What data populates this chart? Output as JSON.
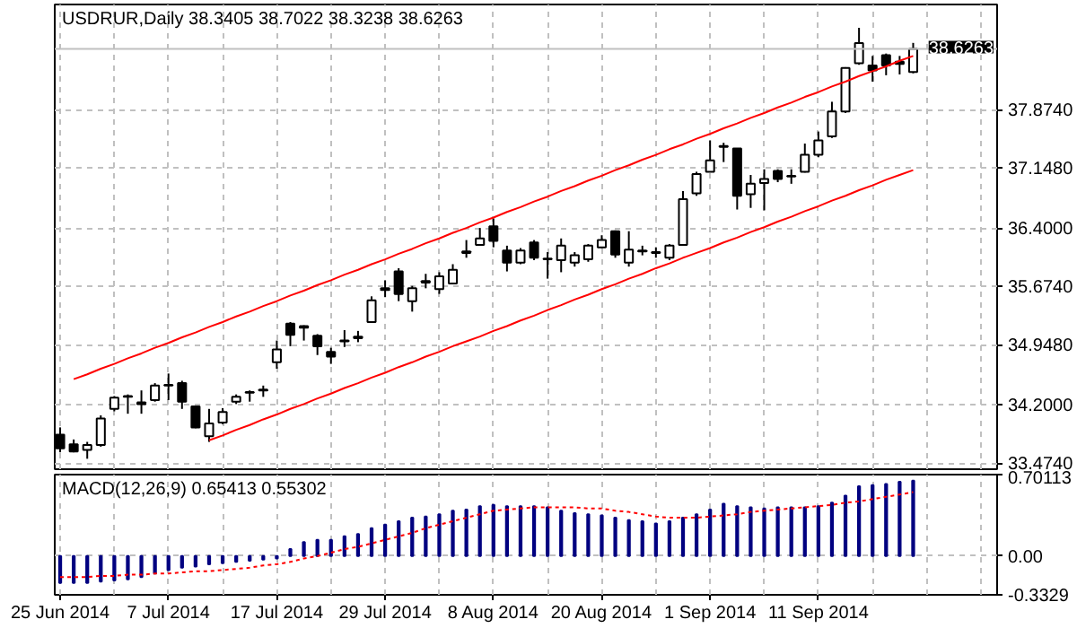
{
  "chart_data": [
    {
      "type": "candlestick",
      "title": "USDRUR,Daily 38.3405 38.7022 38.3238 38.6263",
      "ohlc": [
        [
          33.83,
          33.92,
          33.61,
          33.66
        ],
        [
          33.71,
          33.77,
          33.61,
          33.62
        ],
        [
          33.64,
          33.74,
          33.53,
          33.7
        ],
        [
          33.7,
          34.07,
          33.68,
          34.03
        ],
        [
          34.15,
          34.31,
          34.12,
          34.29
        ],
        [
          34.3,
          34.33,
          34.09,
          34.31
        ],
        [
          34.21,
          34.38,
          34.09,
          34.23
        ],
        [
          34.26,
          34.47,
          34.24,
          34.44
        ],
        [
          34.44,
          34.59,
          34.26,
          34.45
        ],
        [
          34.47,
          34.5,
          34.15,
          34.24
        ],
        [
          34.18,
          34.19,
          33.91,
          33.92
        ],
        [
          33.81,
          34.15,
          33.74,
          33.97
        ],
        [
          33.98,
          34.16,
          33.96,
          34.11
        ],
        [
          34.24,
          34.33,
          34.21,
          34.3
        ],
        [
          34.35,
          34.38,
          34.24,
          34.36
        ],
        [
          34.38,
          34.44,
          34.3,
          34.39
        ],
        [
          34.73,
          35.0,
          34.65,
          34.89
        ],
        [
          35.21,
          35.23,
          34.93,
          35.07
        ],
        [
          35.16,
          35.19,
          35.0,
          35.18
        ],
        [
          35.06,
          35.08,
          34.82,
          34.93
        ],
        [
          34.86,
          34.91,
          34.71,
          34.8
        ],
        [
          34.99,
          35.13,
          34.92,
          35.0
        ],
        [
          35.03,
          35.12,
          34.98,
          35.05
        ],
        [
          35.23,
          35.55,
          35.22,
          35.5
        ],
        [
          35.63,
          35.75,
          35.54,
          35.65
        ],
        [
          35.86,
          35.9,
          35.49,
          35.58
        ],
        [
          35.49,
          35.68,
          35.36,
          35.65
        ],
        [
          35.72,
          35.83,
          35.65,
          35.74
        ],
        [
          35.64,
          35.85,
          35.58,
          35.8
        ],
        [
          35.71,
          35.95,
          35.7,
          35.88
        ],
        [
          36.09,
          36.25,
          36.03,
          36.11
        ],
        [
          36.19,
          36.4,
          36.18,
          36.27
        ],
        [
          36.42,
          36.52,
          36.16,
          36.24
        ],
        [
          36.12,
          36.18,
          35.86,
          35.97
        ],
        [
          35.97,
          36.15,
          35.95,
          36.12
        ],
        [
          36.22,
          36.25,
          36.0,
          36.03
        ],
        [
          36.01,
          36.1,
          35.77,
          36.02
        ],
        [
          36.0,
          36.27,
          35.85,
          36.18
        ],
        [
          35.97,
          36.1,
          35.92,
          36.06
        ],
        [
          36.01,
          36.2,
          35.98,
          36.18
        ],
        [
          36.16,
          36.31,
          36.15,
          36.25
        ],
        [
          36.36,
          36.37,
          36.03,
          36.07
        ],
        [
          35.97,
          36.36,
          35.92,
          36.13
        ],
        [
          36.11,
          36.18,
          36.06,
          36.12
        ],
        [
          36.09,
          36.16,
          36.03,
          36.1
        ],
        [
          36.03,
          36.2,
          36.0,
          36.18
        ],
        [
          36.19,
          36.86,
          36.18,
          36.76
        ],
        [
          36.83,
          37.1,
          36.8,
          37.07
        ],
        [
          37.1,
          37.49,
          37.1,
          37.24
        ],
        [
          37.41,
          37.46,
          37.22,
          37.42
        ],
        [
          37.39,
          37.39,
          36.63,
          36.8
        ],
        [
          36.82,
          37.06,
          36.65,
          36.95
        ],
        [
          36.96,
          37.13,
          36.62,
          37.01
        ],
        [
          37.11,
          37.13,
          36.97,
          37.01
        ],
        [
          37.04,
          37.13,
          36.95,
          37.05
        ],
        [
          37.1,
          37.45,
          37.09,
          37.31
        ],
        [
          37.31,
          37.6,
          37.28,
          37.49
        ],
        [
          37.54,
          37.97,
          37.52,
          37.85
        ],
        [
          37.85,
          38.4,
          37.83,
          38.39
        ],
        [
          38.45,
          38.89,
          38.43,
          38.7
        ],
        [
          38.42,
          38.54,
          38.22,
          38.36
        ],
        [
          38.55,
          38.57,
          38.3,
          38.42
        ],
        [
          38.47,
          38.54,
          38.31,
          38.44
        ],
        [
          38.3405,
          38.7022,
          38.3238,
          38.6263
        ]
      ],
      "series": [
        {
          "type": "line",
          "color": "#ff0000",
          "values": [
            null,
            34.52,
            34.58,
            34.65,
            34.71,
            34.78,
            34.84,
            34.91,
            34.97,
            35.04,
            35.1,
            35.17,
            35.23,
            35.3,
            35.36,
            35.43,
            35.49,
            35.56,
            35.62,
            35.69,
            35.75,
            35.82,
            35.88,
            35.95,
            36.01,
            36.08,
            36.14,
            36.21,
            36.27,
            36.34,
            36.4,
            36.47,
            36.53,
            36.6,
            36.66,
            36.73,
            36.79,
            36.86,
            36.92,
            36.99,
            37.05,
            37.12,
            37.18,
            37.25,
            37.31,
            37.38,
            37.44,
            37.51,
            37.57,
            37.64,
            37.7,
            37.77,
            37.83,
            37.9,
            37.96,
            38.03,
            38.09,
            38.16,
            38.22,
            38.29,
            38.35,
            38.41,
            38.48,
            38.54
          ]
        },
        {
          "type": "line",
          "color": "#ff0000",
          "values": [
            null,
            null,
            null,
            null,
            null,
            null,
            null,
            null,
            null,
            null,
            null,
            33.76,
            33.82,
            33.89,
            33.95,
            34.02,
            34.08,
            34.15,
            34.21,
            34.28,
            34.34,
            34.41,
            34.47,
            34.54,
            34.6,
            34.67,
            34.73,
            34.8,
            34.86,
            34.93,
            34.99,
            35.05,
            35.12,
            35.18,
            35.25,
            35.31,
            35.38,
            35.44,
            35.51,
            35.57,
            35.64,
            35.7,
            35.77,
            35.83,
            35.9,
            35.96,
            36.03,
            36.09,
            36.15,
            36.22,
            36.28,
            36.35,
            36.41,
            36.48,
            36.54,
            36.61,
            36.67,
            36.74,
            36.8,
            36.87,
            36.93,
            37.0,
            37.06,
            37.12
          ]
        }
      ],
      "ref_lines": [
        {
          "axis": "y",
          "value": 38.6263,
          "label": "38.6263",
          "color": "#c0c0c0"
        }
      ],
      "ylim": [
        33.4,
        39.18
      ],
      "yticks": [
        {
          "value": 33.474,
          "label": "33.4740"
        },
        {
          "value": 34.2,
          "label": "34.2000"
        },
        {
          "value": 34.948,
          "label": "34.9480"
        },
        {
          "value": 35.674,
          "label": "35.6740"
        },
        {
          "value": 36.4,
          "label": "36.4000"
        },
        {
          "value": 37.148,
          "label": "37.1480"
        },
        {
          "value": 37.874,
          "label": "37.8740"
        }
      ],
      "grid": true,
      "tick_labels": "y"
    },
    {
      "type": "bar",
      "title": "MACD(12,26,9) 0.65413 0.55302",
      "categories": [
        "25 Jun 2014",
        null,
        null,
        null,
        null,
        null,
        null,
        null,
        "7 Jul 2014",
        null,
        null,
        null,
        null,
        null,
        null,
        null,
        "17 Jul 2014",
        null,
        null,
        null,
        null,
        null,
        null,
        null,
        "29 Jul 2014",
        null,
        null,
        null,
        null,
        null,
        null,
        null,
        "8 Aug 2014",
        null,
        null,
        null,
        null,
        null,
        null,
        null,
        "20 Aug 2014",
        null,
        null,
        null,
        null,
        null,
        null,
        null,
        "1 Sep 2014",
        null,
        null,
        null,
        null,
        null,
        null,
        null,
        "11 Sep 2014",
        null,
        null,
        null,
        null,
        null,
        null,
        null
      ],
      "series": [
        {
          "type": "bar",
          "color": "#000080",
          "values": [
            -0.23,
            -0.23,
            -0.23,
            -0.22,
            -0.21,
            -0.2,
            -0.18,
            -0.15,
            -0.12,
            -0.1,
            -0.09,
            -0.07,
            -0.06,
            -0.05,
            -0.04,
            -0.03,
            -0.02,
            0.06,
            0.12,
            0.14,
            0.14,
            0.17,
            0.19,
            0.24,
            0.27,
            0.3,
            0.33,
            0.34,
            0.36,
            0.39,
            0.4,
            0.43,
            0.44,
            0.43,
            0.43,
            0.43,
            0.42,
            0.39,
            0.37,
            0.36,
            0.35,
            0.33,
            0.31,
            0.3,
            0.28,
            0.3,
            0.33,
            0.36,
            0.4,
            0.45,
            0.43,
            0.42,
            0.41,
            0.42,
            0.42,
            0.42,
            0.43,
            0.46,
            0.52,
            0.6,
            0.61,
            0.62,
            0.64,
            0.65
          ]
        },
        {
          "type": "line",
          "color": "#ff0000",
          "line_style": "dotted",
          "values": [
            -0.18,
            -0.18,
            -0.18,
            -0.17,
            -0.17,
            -0.16,
            -0.16,
            -0.15,
            -0.15,
            -0.14,
            -0.13,
            -0.13,
            -0.12,
            -0.11,
            -0.1,
            -0.08,
            -0.07,
            -0.05,
            -0.02,
            0.0,
            0.03,
            0.06,
            0.08,
            0.11,
            0.14,
            0.17,
            0.2,
            0.24,
            0.27,
            0.3,
            0.33,
            0.36,
            0.39,
            0.4,
            0.41,
            0.42,
            0.42,
            0.42,
            0.42,
            0.41,
            0.41,
            0.39,
            0.38,
            0.36,
            0.34,
            0.33,
            0.33,
            0.33,
            0.34,
            0.35,
            0.36,
            0.38,
            0.39,
            0.4,
            0.41,
            0.42,
            0.43,
            0.44,
            0.46,
            0.47,
            0.49,
            0.51,
            0.53,
            0.55
          ]
        }
      ],
      "ylim": [
        -0.3329,
        0.70113
      ],
      "yticks": [
        {
          "value": -0.3329,
          "label": "-0.3329"
        },
        {
          "value": 0,
          "label": "0.00"
        },
        {
          "value": 0.70113,
          "label": "0.70113"
        }
      ],
      "grid": true
    }
  ]
}
